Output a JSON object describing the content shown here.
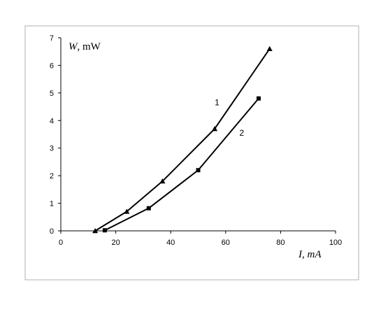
{
  "chart_data": {
    "type": "line",
    "title": "",
    "xlabel": "I, mA",
    "ylabel_italic": "W",
    "ylabel_unit": ", mW",
    "xlim": [
      0,
      100
    ],
    "ylim": [
      0,
      7
    ],
    "xticks": [
      0,
      20,
      40,
      60,
      80,
      100
    ],
    "yticks": [
      0,
      1,
      2,
      3,
      4,
      5,
      6,
      7
    ],
    "grid": false,
    "legend": "none",
    "series": [
      {
        "name": "1",
        "marker": "triangle",
        "color": "#000000",
        "x": [
          12.5,
          24,
          37,
          56,
          76
        ],
        "y": [
          0,
          0.7,
          1.8,
          3.7,
          6.6
        ],
        "label_at": [
          56,
          4.55
        ]
      },
      {
        "name": "2",
        "marker": "square",
        "color": "#000000",
        "x": [
          16,
          32,
          50,
          72
        ],
        "y": [
          0.02,
          0.82,
          2.2,
          4.8
        ],
        "label_at": [
          65,
          3.45
        ]
      }
    ]
  }
}
